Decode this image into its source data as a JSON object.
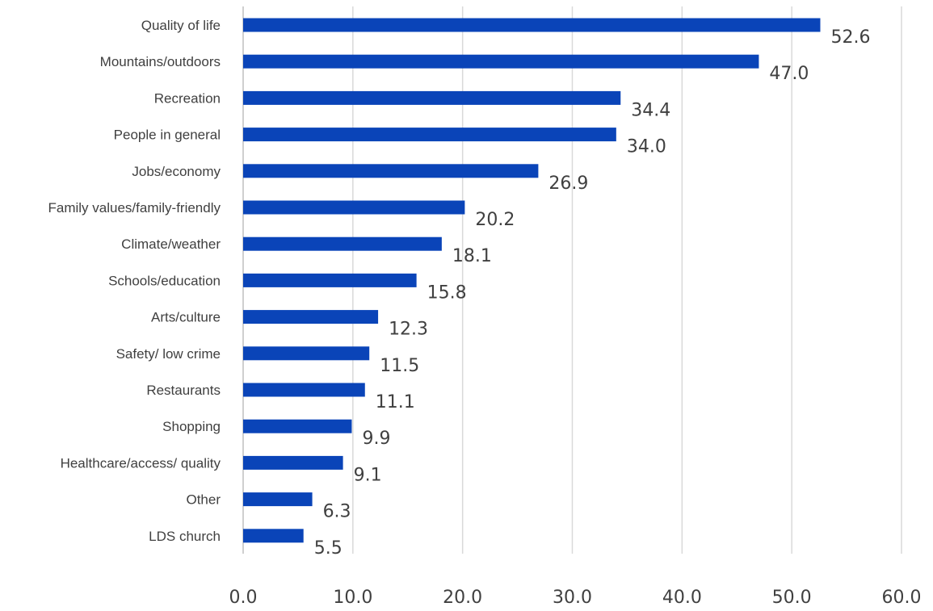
{
  "chart_data": {
    "type": "bar",
    "orientation": "horizontal",
    "title": "",
    "xlabel": "",
    "ylabel": "",
    "categories": [
      "Quality of life",
      "Mountains/outdoors",
      "Recreation",
      "People in general",
      "Jobs/economy",
      "Family values/family-friendly",
      "Climate/weather",
      "Schools/education",
      "Arts/culture",
      "Safety/ low crime",
      "Restaurants",
      "Shopping",
      "Healthcare/access/ quality",
      "Other",
      "LDS church"
    ],
    "values": [
      52.6,
      47.0,
      34.4,
      34.0,
      26.9,
      20.2,
      18.1,
      15.8,
      12.3,
      11.5,
      11.1,
      9.9,
      9.1,
      6.3,
      5.5
    ],
    "value_labels": [
      "52.6",
      "47.0",
      "34.4",
      "34.0",
      "26.9",
      "20.2",
      "18.1",
      "15.8",
      "12.3",
      "11.5",
      "11.1",
      "9.9",
      "9.1",
      "6.3",
      "5.5"
    ],
    "xlim": [
      0,
      60
    ],
    "xticks": [
      0,
      10,
      20,
      30,
      40,
      50,
      60
    ],
    "xtick_labels": [
      "0.0",
      "10.0",
      "20.0",
      "30.0",
      "40.0",
      "50.0",
      "60.0"
    ],
    "grid": "vertical",
    "legend": "none",
    "bar_color": "#0A44B8"
  }
}
